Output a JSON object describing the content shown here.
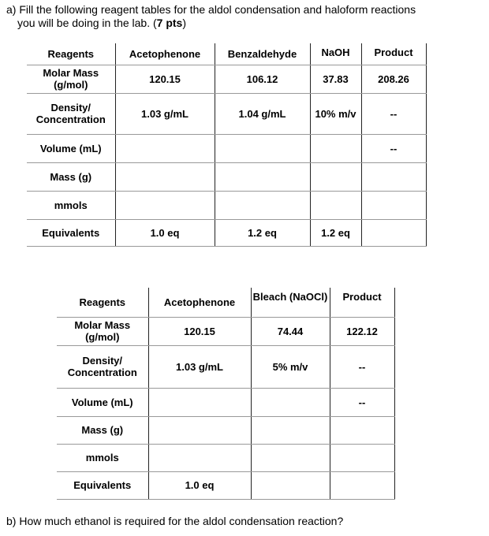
{
  "question_a": {
    "text": "a) Fill the following reagent tables for the aldol condensation and haloform reactions",
    "text_line2": "you will be doing in the lab. (",
    "points": "7 pts",
    "close": ")"
  },
  "table1": {
    "headers": [
      "Reagents",
      "Acetophenone",
      "Benzaldehyde",
      "NaOH",
      "Product"
    ],
    "rows": [
      [
        "Molar Mass (g/mol)",
        "120.15",
        "106.12",
        "37.83",
        "208.26"
      ],
      [
        "Density/ Concentration",
        "1.03 g/mL",
        "1.04 g/mL",
        "10% m/v",
        "--"
      ],
      [
        "Volume (mL)",
        "",
        "",
        "",
        "--"
      ],
      [
        "Mass (g)",
        "",
        "",
        "",
        ""
      ],
      [
        "mmols",
        "",
        "",
        "",
        ""
      ],
      [
        "Equivalents",
        "1.0 eq",
        "1.2 eq",
        "1.2 eq",
        ""
      ]
    ]
  },
  "table2": {
    "headers": [
      "Reagents",
      "Acetophenone",
      "Bleach (NaOCl)",
      "Product"
    ],
    "rows": [
      [
        "Molar Mass (g/mol)",
        "120.15",
        "74.44",
        "122.12"
      ],
      [
        "Density/ Concentration",
        "1.03 g/mL",
        "5% m/v",
        "--"
      ],
      [
        "Volume (mL)",
        "",
        "",
        "--"
      ],
      [
        "Mass (g)",
        "",
        "",
        ""
      ],
      [
        "mmols",
        "",
        "",
        ""
      ],
      [
        "Equivalents",
        "1.0 eq",
        "",
        ""
      ]
    ]
  },
  "question_b": {
    "text": "b) How much ethanol is required for the aldol condensation reaction?"
  }
}
